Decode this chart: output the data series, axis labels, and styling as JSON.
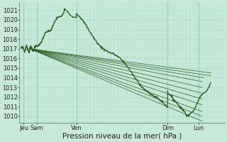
{
  "bg_color": "#c8e8d8",
  "grid_color_minor": "#b0d8c8",
  "grid_color_major": "#98c8b8",
  "line_color": "#2d5a1e",
  "ylim": [
    1009.3,
    1021.8
  ],
  "yticks": [
    1010,
    1011,
    1012,
    1013,
    1014,
    1015,
    1016,
    1017,
    1018,
    1019,
    1020,
    1021
  ],
  "xlabel": "Pression niveau de la mer( hPa )",
  "xlabel_fontsize": 7.5,
  "tick_fontsize": 6,
  "xlim": [
    -0.1,
    11.8
  ],
  "xtick_positions": [
    0.15,
    0.9,
    3.2,
    8.5,
    10.3
  ],
  "xtick_labels": [
    "Jeu",
    "Sam",
    "Ven",
    "Dim",
    "Lun"
  ],
  "major_vlines": [
    0.15,
    0.9,
    3.2,
    8.5,
    10.3
  ]
}
